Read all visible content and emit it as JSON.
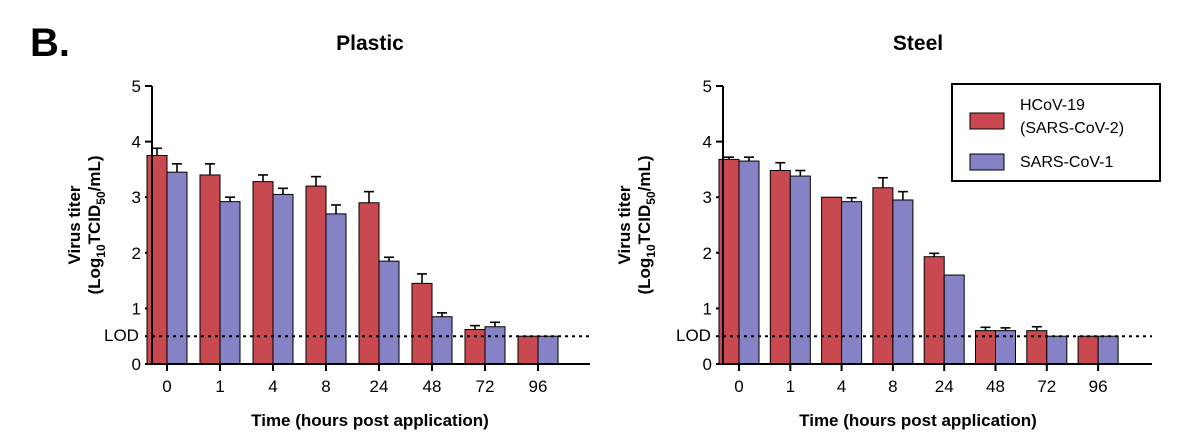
{
  "panel_label": "B.",
  "colors": {
    "hcov19": "#C8494F",
    "sars1": "#8582C6",
    "axis": "#000000"
  },
  "legend": {
    "entries": [
      {
        "line1": "HCoV-19",
        "line2": "(SARS-CoV-2)"
      },
      {
        "line1": "SARS-CoV-1",
        "line2": ""
      }
    ]
  },
  "chart_data": [
    {
      "type": "bar",
      "title": "Plastic",
      "xlabel": "Time (hours post application)",
      "ylabel": {
        "line1": "Virus titer",
        "line2_pre": "(Log",
        "line2_sub1": "10",
        "line2_mid": "TCID",
        "line2_sub2": "50",
        "line2_post": "/mL)"
      },
      "ylim": [
        0,
        5
      ],
      "yticks": [
        "0",
        "1",
        "2",
        "3",
        "4",
        "5"
      ],
      "lod": {
        "label": "LOD",
        "value": 0.5
      },
      "categories": [
        "0",
        "1",
        "4",
        "8",
        "24",
        "48",
        "72",
        "96"
      ],
      "series": [
        {
          "name": "HCoV-19 (SARS-CoV-2)",
          "values": [
            3.75,
            3.4,
            3.28,
            3.2,
            2.9,
            1.45,
            0.62,
            0.5
          ],
          "errors": [
            0.13,
            0.2,
            0.12,
            0.17,
            0.2,
            0.17,
            0.07,
            0
          ]
        },
        {
          "name": "SARS-CoV-1",
          "values": [
            3.45,
            2.92,
            3.05,
            2.7,
            1.85,
            0.85,
            0.67,
            0.5
          ],
          "errors": [
            0.15,
            0.08,
            0.11,
            0.16,
            0.07,
            0.07,
            0.08,
            0
          ]
        }
      ]
    },
    {
      "type": "bar",
      "title": "Steel",
      "xlabel": "Time (hours post application)",
      "ylabel": {
        "line1": "Virus titer",
        "line2_pre": "(Log",
        "line2_sub1": "10",
        "line2_mid": "TCID",
        "line2_sub2": "50",
        "line2_post": "/mL)"
      },
      "ylim": [
        0,
        5
      ],
      "yticks": [
        "0",
        "1",
        "2",
        "3",
        "4",
        "5"
      ],
      "lod": {
        "label": "LOD",
        "value": 0.5
      },
      "categories": [
        "0",
        "1",
        "4",
        "8",
        "24",
        "48",
        "72",
        "96"
      ],
      "series": [
        {
          "name": "HCoV-19 (SARS-CoV-2)",
          "values": [
            3.68,
            3.48,
            3.0,
            3.17,
            1.93,
            0.6,
            0.6,
            0.5
          ],
          "errors": [
            0.04,
            0.14,
            0,
            0.18,
            0.06,
            0.06,
            0.07,
            0
          ]
        },
        {
          "name": "SARS-CoV-1",
          "values": [
            3.65,
            3.38,
            2.92,
            2.95,
            1.6,
            0.6,
            0.5,
            0.5
          ],
          "errors": [
            0.07,
            0.1,
            0.07,
            0.15,
            0,
            0.05,
            0,
            0
          ]
        }
      ]
    }
  ]
}
